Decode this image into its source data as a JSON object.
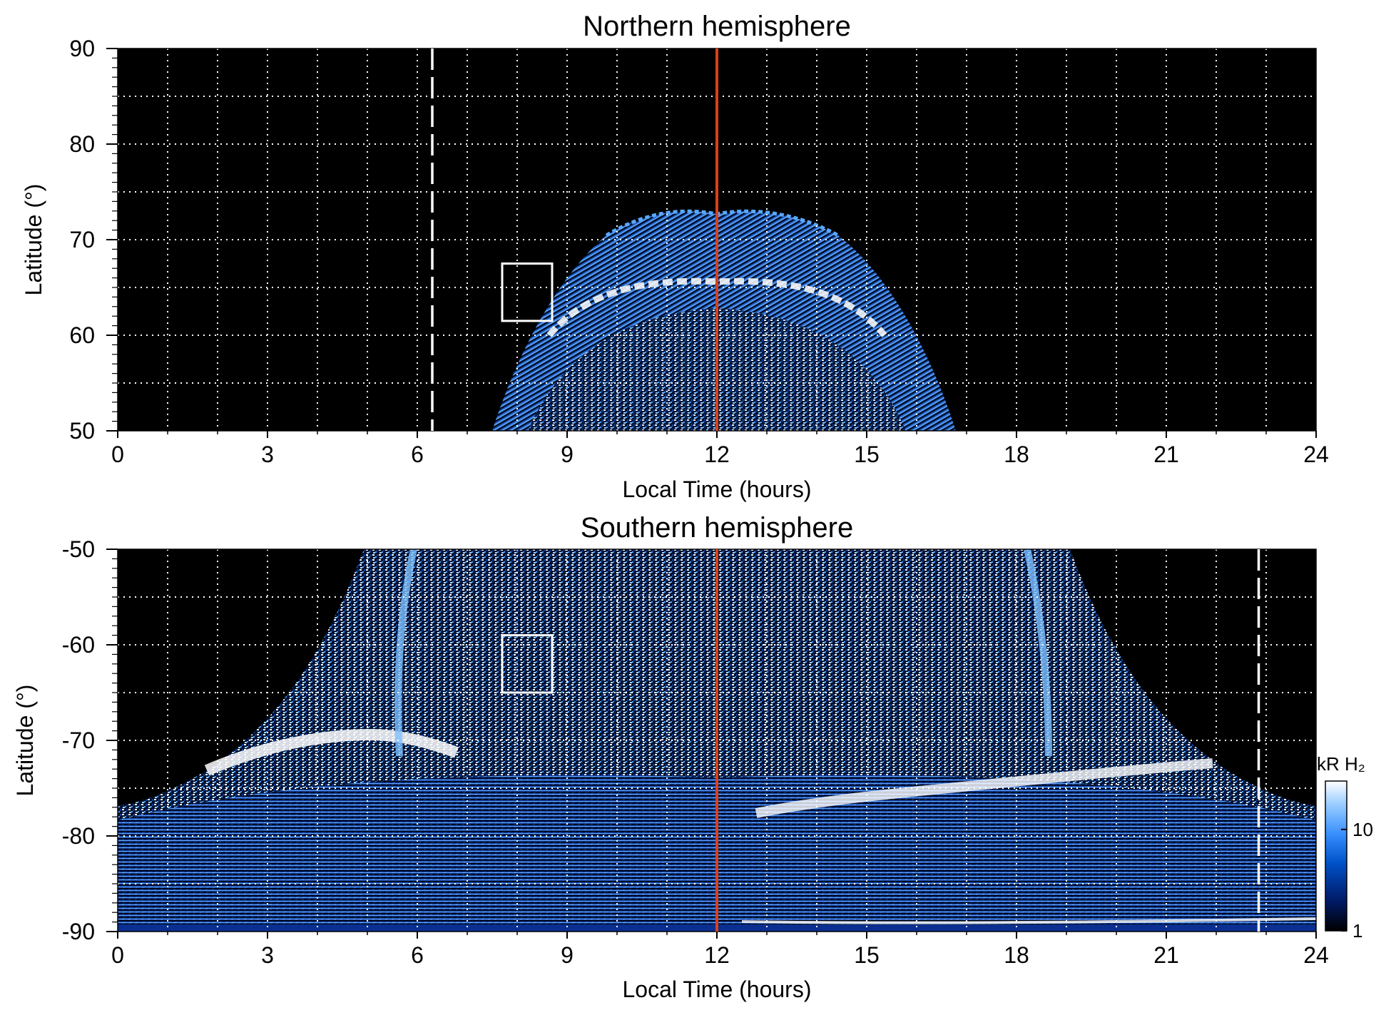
{
  "chart_data": [
    {
      "type": "heatmap",
      "title": "Northern hemisphere",
      "xlabel": "Local Time (hours)",
      "ylabel": "Latitude (°)",
      "xlim": [
        0,
        24
      ],
      "ylim": [
        50,
        90
      ],
      "x_ticks": [
        "0",
        "3",
        "6",
        "9",
        "12",
        "15",
        "18",
        "21",
        "24"
      ],
      "y_ticks": [
        "50",
        "60",
        "70",
        "80",
        "90"
      ],
      "grid": true,
      "background": "black",
      "dashed_line_lt": 6.3,
      "noon_line_lt": 12,
      "noon_line_color": "#d9401a",
      "box": {
        "lt": [
          7.7,
          8.7
        ],
        "lat": [
          61.5,
          67.5
        ]
      },
      "emission_region": {
        "lt_range": [
          7.5,
          17.0
        ],
        "oval_lat_at_noon": 64,
        "poleward_edge_lat": 73,
        "equatorward_edge_lat": 50
      }
    },
    {
      "type": "heatmap",
      "title": "Southern hemisphere",
      "xlabel": "Local Time (hours)",
      "ylabel": "Latitude (°)",
      "xlim": [
        0,
        24
      ],
      "ylim": [
        -90,
        -50
      ],
      "x_ticks": [
        "0",
        "3",
        "6",
        "9",
        "12",
        "15",
        "18",
        "21",
        "24"
      ],
      "y_ticks": [
        "-50",
        "-60",
        "-70",
        "-80",
        "-90"
      ],
      "grid": true,
      "background": "black",
      "dashed_line_lt": 22.85,
      "noon_line_lt": 12,
      "noon_line_color": "#d9401a",
      "box": {
        "lt": [
          7.7,
          8.7
        ],
        "lat": [
          -65,
          -59
        ]
      },
      "emission_region": {
        "lt_range": [
          0,
          24
        ],
        "bright_oval_lat_dawn": -70,
        "bright_oval_lat_dusk": -72,
        "edge_lat_at_midnight": -77
      }
    }
  ],
  "colorbar": {
    "title": "kR H₂",
    "ticks": [
      "10",
      "1"
    ],
    "scale": "log",
    "range": [
      1,
      30
    ],
    "colors": [
      "#000000",
      "#001a66",
      "#0050c8",
      "#3a90ff",
      "#9ccfff",
      "#ffffff"
    ]
  }
}
